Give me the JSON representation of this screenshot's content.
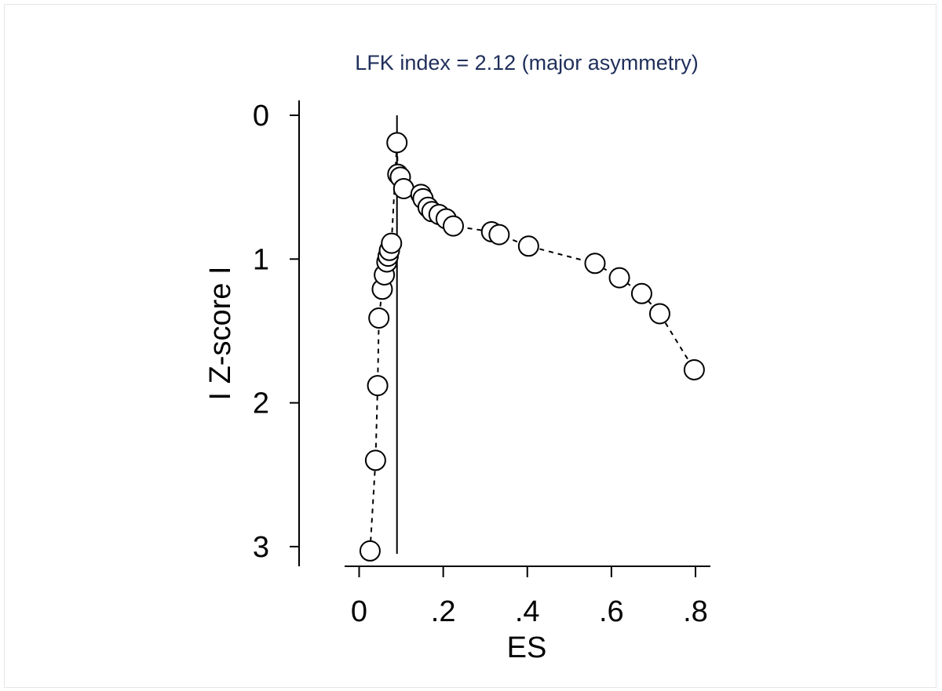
{
  "chart_data": {
    "type": "scatter",
    "title": "LFK index = 2.12 (major asymmetry)",
    "xlabel": "ES",
    "ylabel": "I Z-score I",
    "xlim": [
      -0.04,
      0.84
    ],
    "ylim": [
      0,
      3.1
    ],
    "y_axis_inverted": true,
    "xticks": [
      0,
      0.2,
      0.4,
      0.6,
      0.8
    ],
    "xtick_labels": [
      "0",
      ".2",
      ".4",
      ".6",
      ".8"
    ],
    "yticks": [
      0,
      1,
      2,
      3
    ],
    "ytick_labels": [
      "0",
      "1",
      "2",
      "3"
    ],
    "reference_line_x": 0.09,
    "connected": true,
    "line_style": "dashed",
    "marker": "hollow circle",
    "grid": false,
    "legend": "none",
    "colors": {
      "title": "#1f2f5a",
      "axis": "#000000",
      "marker_fill": "#ffffff",
      "marker_stroke": "#000000",
      "frame": "#e6e6e6"
    },
    "points": [
      {
        "x": 0.026,
        "y": 3.03
      },
      {
        "x": 0.039,
        "y": 2.4
      },
      {
        "x": 0.044,
        "y": 1.88
      },
      {
        "x": 0.047,
        "y": 1.41
      },
      {
        "x": 0.055,
        "y": 1.21
      },
      {
        "x": 0.06,
        "y": 1.11
      },
      {
        "x": 0.066,
        "y": 1.02
      },
      {
        "x": 0.069,
        "y": 0.98
      },
      {
        "x": 0.072,
        "y": 0.94
      },
      {
        "x": 0.077,
        "y": 0.89
      },
      {
        "x": 0.09,
        "y": 0.19
      },
      {
        "x": 0.092,
        "y": 0.41
      },
      {
        "x": 0.098,
        "y": 0.43
      },
      {
        "x": 0.106,
        "y": 0.51
      },
      {
        "x": 0.147,
        "y": 0.55
      },
      {
        "x": 0.152,
        "y": 0.58
      },
      {
        "x": 0.164,
        "y": 0.64
      },
      {
        "x": 0.173,
        "y": 0.67
      },
      {
        "x": 0.19,
        "y": 0.69
      },
      {
        "x": 0.207,
        "y": 0.72
      },
      {
        "x": 0.224,
        "y": 0.77
      },
      {
        "x": 0.315,
        "y": 0.81
      },
      {
        "x": 0.333,
        "y": 0.83
      },
      {
        "x": 0.403,
        "y": 0.91
      },
      {
        "x": 0.561,
        "y": 1.03
      },
      {
        "x": 0.619,
        "y": 1.13
      },
      {
        "x": 0.672,
        "y": 1.24
      },
      {
        "x": 0.715,
        "y": 1.38
      },
      {
        "x": 0.797,
        "y": 1.77
      }
    ]
  }
}
